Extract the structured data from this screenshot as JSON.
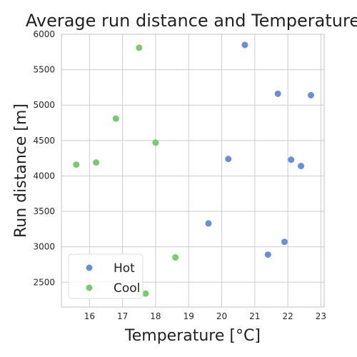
{
  "chart_data": {
    "type": "scatter",
    "title": "Average run distance and Temperature",
    "xlabel": "Temperature [°C]",
    "ylabel": "Run distance [m]",
    "xlim": [
      15.15,
      23.1
    ],
    "ylim": [
      2150,
      6000
    ],
    "xticks": [
      "16",
      "17",
      "18",
      "19",
      "20",
      "21",
      "22",
      "23"
    ],
    "yticks": [
      "2500",
      "3000",
      "3500",
      "4000",
      "4500",
      "5000",
      "5500",
      "6000"
    ],
    "grid": true,
    "legend_position": "bottom-left",
    "series": [
      {
        "name": "Hot",
        "color": "#6a8fd6",
        "points": [
          {
            "x": 20.7,
            "y": 5850
          },
          {
            "x": 21.7,
            "y": 5160
          },
          {
            "x": 22.7,
            "y": 5140
          },
          {
            "x": 20.2,
            "y": 4240
          },
          {
            "x": 22.1,
            "y": 4230
          },
          {
            "x": 22.4,
            "y": 4140
          },
          {
            "x": 19.6,
            "y": 3330
          },
          {
            "x": 21.9,
            "y": 3070
          },
          {
            "x": 21.4,
            "y": 2890
          }
        ]
      },
      {
        "name": "Cool",
        "color": "#77cc6f",
        "points": [
          {
            "x": 17.5,
            "y": 5810
          },
          {
            "x": 16.8,
            "y": 4810
          },
          {
            "x": 18.0,
            "y": 4470
          },
          {
            "x": 16.2,
            "y": 4190
          },
          {
            "x": 15.6,
            "y": 4160
          },
          {
            "x": 18.6,
            "y": 2850
          },
          {
            "x": 17.7,
            "y": 2340
          }
        ]
      }
    ]
  }
}
